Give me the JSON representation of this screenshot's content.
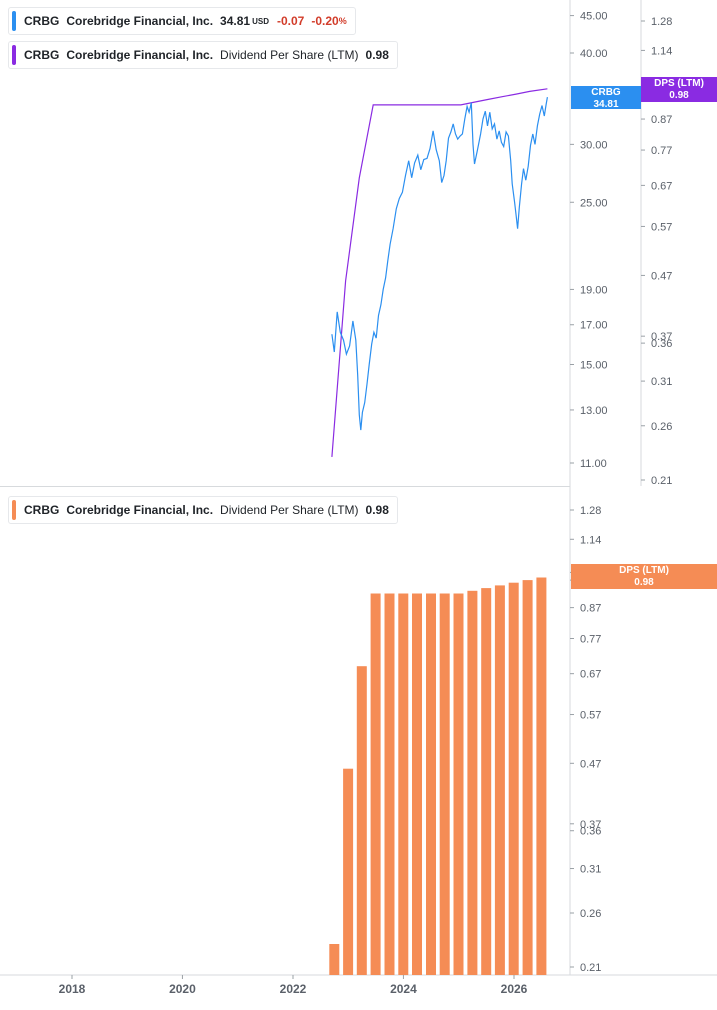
{
  "legend_price": {
    "ticker": "CRBG",
    "name": "Corebridge Financial, Inc.",
    "price": "34.81",
    "currency": "USD",
    "change": "-0.07",
    "change_pct": "-0.20",
    "pct_sign": "%",
    "color": "#2b8ff0"
  },
  "legend_dps": {
    "ticker": "CRBG",
    "name": "Corebridge Financial, Inc.",
    "metric": "Dividend Per Share (LTM)",
    "value": "0.98",
    "color": "#8a2be2"
  },
  "legend_bars": {
    "ticker": "CRBG",
    "name": "Corebridge Financial, Inc.",
    "metric": "Dividend Per Share (LTM)",
    "value": "0.98",
    "color": "#f58c55"
  },
  "tags": {
    "price": {
      "line1": "CRBG",
      "line2": "34.81"
    },
    "dps_top": {
      "line1": "DPS (LTM)",
      "line2": "0.98"
    },
    "dps_bottom": {
      "line1": "DPS (LTM)",
      "line2": "0.98"
    }
  },
  "chart_data": [
    {
      "type": "line",
      "scale": "log",
      "series": [
        {
          "name": "CRBG",
          "color": "#2b8ff0",
          "points": [
            [
              "2022-09-15",
              16.5
            ],
            [
              "2022-10-01",
              15.6
            ],
            [
              "2022-10-20",
              17.7
            ],
            [
              "2022-11-10",
              16.6
            ],
            [
              "2022-12-01",
              16.2
            ],
            [
              "2022-12-20",
              15.5
            ],
            [
              "2023-01-10",
              15.9
            ],
            [
              "2023-02-01",
              17.2
            ],
            [
              "2023-02-20",
              16.2
            ],
            [
              "2023-03-05",
              14.5
            ],
            [
              "2023-03-15",
              12.8
            ],
            [
              "2023-03-25",
              12.2
            ],
            [
              "2023-04-05",
              12.9
            ],
            [
              "2023-04-20",
              13.3
            ],
            [
              "2023-05-05",
              14.1
            ],
            [
              "2023-05-20",
              15.0
            ],
            [
              "2023-06-05",
              16.0
            ],
            [
              "2023-06-20",
              16.6
            ],
            [
              "2023-07-05",
              16.3
            ],
            [
              "2023-07-20",
              17.5
            ],
            [
              "2023-08-05",
              18.1
            ],
            [
              "2023-08-20",
              19.0
            ],
            [
              "2023-09-05",
              19.7
            ],
            [
              "2023-09-20",
              20.8
            ],
            [
              "2023-10-05",
              21.9
            ],
            [
              "2023-10-25",
              23.0
            ],
            [
              "2023-11-15",
              24.5
            ],
            [
              "2023-12-05",
              25.3
            ],
            [
              "2023-12-25",
              25.8
            ],
            [
              "2024-01-15",
              27.2
            ],
            [
              "2024-02-05",
              28.5
            ],
            [
              "2024-02-25",
              27.0
            ],
            [
              "2024-03-15",
              28.3
            ],
            [
              "2024-04-05",
              29.0
            ],
            [
              "2024-04-25",
              27.7
            ],
            [
              "2024-05-15",
              28.6
            ],
            [
              "2024-06-05",
              28.7
            ],
            [
              "2024-06-25",
              29.6
            ],
            [
              "2024-07-15",
              31.3
            ],
            [
              "2024-08-05",
              29.5
            ],
            [
              "2024-08-25",
              28.5
            ],
            [
              "2024-09-10",
              26.6
            ],
            [
              "2024-09-25",
              27.2
            ],
            [
              "2024-10-10",
              28.5
            ],
            [
              "2024-10-25",
              30.6
            ],
            [
              "2024-11-10",
              31.2
            ],
            [
              "2024-11-25",
              32.0
            ],
            [
              "2024-12-10",
              31.0
            ],
            [
              "2024-12-25",
              30.5
            ],
            [
              "2025-01-10",
              30.8
            ],
            [
              "2025-01-25",
              31.0
            ],
            [
              "2025-02-10",
              32.5
            ],
            [
              "2025-02-25",
              33.8
            ],
            [
              "2025-03-10",
              33.2
            ],
            [
              "2025-03-25",
              34.2
            ],
            [
              "2025-04-05",
              30.0
            ],
            [
              "2025-04-15",
              28.2
            ],
            [
              "2025-05-05",
              29.5
            ],
            [
              "2025-05-25",
              31.0
            ],
            [
              "2025-06-10",
              32.5
            ],
            [
              "2025-06-25",
              33.3
            ],
            [
              "2025-07-10",
              31.8
            ],
            [
              "2025-07-25",
              33.2
            ],
            [
              "2025-08-10",
              31.5
            ],
            [
              "2025-08-25",
              32.0
            ],
            [
              "2025-09-10",
              30.5
            ],
            [
              "2025-09-25",
              31.3
            ],
            [
              "2025-10-10",
              30.2
            ],
            [
              "2025-10-25",
              29.8
            ],
            [
              "2025-11-10",
              31.2
            ],
            [
              "2025-11-25",
              30.8
            ],
            [
              "2025-12-10",
              28.5
            ],
            [
              "2025-12-20",
              26.5
            ],
            [
              "2026-01-05",
              25.0
            ],
            [
              "2026-01-15",
              24.0
            ],
            [
              "2026-01-25",
              23.0
            ],
            [
              "2026-02-05",
              24.6
            ],
            [
              "2026-02-20",
              26.5
            ],
            [
              "2026-03-05",
              27.8
            ],
            [
              "2026-03-20",
              26.8
            ],
            [
              "2026-04-05",
              28.0
            ],
            [
              "2026-04-20",
              29.9
            ],
            [
              "2026-05-05",
              31.0
            ],
            [
              "2026-05-20",
              30.0
            ],
            [
              "2026-06-05",
              31.8
            ],
            [
              "2026-06-20",
              33.0
            ],
            [
              "2026-07-05",
              33.9
            ],
            [
              "2026-07-20",
              32.8
            ],
            [
              "2026-08-01",
              34.0
            ],
            [
              "2026-08-10",
              34.81
            ]
          ]
        },
        {
          "name": "DPS (LTM)",
          "color": "#8a2be2",
          "points": [
            [
              "2022-09-15",
              0.23
            ],
            [
              "2022-12-15",
              0.46
            ],
            [
              "2023-03-15",
              0.69
            ],
            [
              "2023-06-15",
              0.92
            ],
            [
              "2025-01-15",
              0.92
            ],
            [
              "2025-04-15",
              0.93
            ],
            [
              "2025-07-15",
              0.94
            ],
            [
              "2025-10-15",
              0.95
            ],
            [
              "2026-01-15",
              0.96
            ],
            [
              "2026-04-15",
              0.97
            ],
            [
              "2026-08-10",
              0.98
            ]
          ]
        }
      ],
      "left_ticks": [
        11.0,
        13.0,
        15.0,
        17.0,
        19.0,
        25.0,
        30.0,
        40.0,
        45.0
      ],
      "right_ticks": [
        0.21,
        0.26,
        0.31,
        0.36,
        0.37,
        0.47,
        0.57,
        0.67,
        0.77,
        0.87,
        1.14,
        1.28
      ]
    },
    {
      "type": "bar",
      "scale": "log",
      "series": [
        {
          "name": "DPS (LTM)",
          "color": "#f58c55",
          "categories": [
            "2022-Q3",
            "2022-Q4",
            "2023-Q1",
            "2023-Q2",
            "2023-Q3",
            "2023-Q4",
            "2024-Q1",
            "2024-Q2",
            "2024-Q3",
            "2024-Q4",
            "2025-Q1",
            "2025-Q2",
            "2025-Q3",
            "2025-Q4",
            "2026-Q1",
            "2026-Q2"
          ],
          "values": [
            0.23,
            0.46,
            0.69,
            0.92,
            0.92,
            0.92,
            0.92,
            0.92,
            0.92,
            0.92,
            0.93,
            0.94,
            0.95,
            0.96,
            0.97,
            0.98
          ]
        }
      ],
      "right_ticks": [
        0.21,
        0.26,
        0.31,
        0.36,
        0.37,
        0.47,
        0.57,
        0.67,
        0.77,
        0.87,
        0.97,
        1.0,
        1.14,
        1.28
      ]
    }
  ],
  "x_axis": {
    "ticks": [
      "2018",
      "2020",
      "2022",
      "2024",
      "2026"
    ],
    "range": [
      "2017-01-01",
      "2027-06-01"
    ]
  }
}
